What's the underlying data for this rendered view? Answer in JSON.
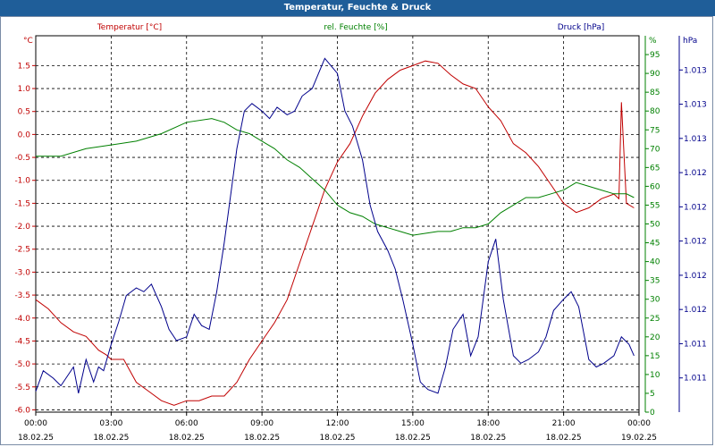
{
  "window": {
    "title": "Temperatur, Feuchte & Druck"
  },
  "colors": {
    "temperature": "#c00000",
    "humidity": "#008000",
    "pressure": "#00008b",
    "grid": "#000000",
    "titlebar": "#1f5e99"
  },
  "chart_data": {
    "type": "line",
    "title": "Temperatur, Feuchte & Druck",
    "grid": true,
    "x_axis": {
      "range": [
        "18.02.25 00:00",
        "19.02.25 00:00"
      ],
      "ticks": [
        {
          "time": "00:00",
          "date": "18.02.25"
        },
        {
          "time": "03:00",
          "date": "18.02.25"
        },
        {
          "time": "06:00",
          "date": "18.02.25"
        },
        {
          "time": "09:00",
          "date": "18.02.25"
        },
        {
          "time": "12:00",
          "date": "18.02.25"
        },
        {
          "time": "15:00",
          "date": "18.02.25"
        },
        {
          "time": "18:00",
          "date": "18.02.25"
        },
        {
          "time": "21:00",
          "date": "18.02.25"
        },
        {
          "time": "00:00",
          "date": "19.02.25"
        }
      ]
    },
    "axes": {
      "temperature": {
        "header": "Temperatur [°C]",
        "unit": "°C",
        "ylim": [
          -6.05,
          2.15
        ],
        "ticks": [
          "1.5",
          "1.0",
          "0.5",
          "0.0",
          "-0.5",
          "-1.0",
          "-1.5",
          "-2.0",
          "-2.5",
          "-3.0",
          "-3.5",
          "-4.0",
          "-4.5",
          "-5.0",
          "-5.5",
          "-6.0"
        ]
      },
      "humidity": {
        "header": "rel. Feuchte [%]",
        "unit": "%",
        "ylim": [
          0,
          100
        ],
        "ticks": [
          "95",
          "90",
          "85",
          "80",
          "75",
          "70",
          "65",
          "60",
          "55",
          "50",
          "45",
          "40",
          "35",
          "30",
          "25",
          "20",
          "15",
          "10",
          "5",
          "0"
        ]
      },
      "pressure": {
        "header": "Druck [hPa]",
        "unit": "hPa",
        "ticks": [
          "1.013",
          "1.013",
          "1.013",
          "1.012",
          "1.012",
          "1.012",
          "1.012",
          "1.012",
          "1.011",
          "1.011"
        ]
      }
    },
    "series": [
      {
        "name": "Temperatur [°C]",
        "axis": "temperature",
        "x_hours": [
          0,
          0.5,
          1,
          1.5,
          2,
          2.5,
          2.8,
          3,
          3.5,
          4,
          4.5,
          5,
          5.5,
          6,
          6.5,
          7,
          7.5,
          8,
          8.5,
          9,
          9.5,
          10,
          10.5,
          11,
          11.5,
          12,
          12.5,
          13,
          13.5,
          14,
          14.5,
          15,
          15.5,
          16,
          16.5,
          17,
          17.5,
          18,
          18.5,
          19,
          19.5,
          20,
          20.5,
          21,
          21.5,
          22,
          22.5,
          23,
          23.2,
          23.3,
          23.5,
          23.8
        ],
        "values": [
          -3.6,
          -3.8,
          -4.1,
          -4.3,
          -4.4,
          -4.7,
          -4.8,
          -4.9,
          -4.9,
          -5.4,
          -5.6,
          -5.8,
          -5.9,
          -5.8,
          -5.8,
          -5.7,
          -5.7,
          -5.4,
          -4.9,
          -4.5,
          -4.1,
          -3.6,
          -2.8,
          -2.0,
          -1.2,
          -0.6,
          -0.2,
          0.4,
          0.9,
          1.2,
          1.4,
          1.5,
          1.6,
          1.55,
          1.3,
          1.1,
          1.0,
          0.6,
          0.3,
          -0.2,
          -0.4,
          -0.7,
          -1.1,
          -1.5,
          -1.7,
          -1.6,
          -1.4,
          -1.3,
          -1.4,
          0.7,
          -1.5,
          -1.6
        ]
      },
      {
        "name": "rel. Feuchte [%]",
        "axis": "humidity",
        "x_hours": [
          0,
          1,
          2,
          3,
          4,
          5,
          6,
          7,
          7.5,
          8,
          8.5,
          9,
          9.5,
          10,
          10.5,
          11,
          11.5,
          12,
          12.5,
          13,
          13.5,
          14,
          14.5,
          15,
          15.5,
          16,
          16.5,
          17,
          17.5,
          18,
          18.5,
          19,
          19.5,
          20,
          20.5,
          21,
          21.5,
          22,
          22.5,
          23,
          23.5,
          23.8
        ],
        "values": [
          68,
          68,
          70,
          71,
          72,
          74,
          77,
          78,
          77,
          75,
          74,
          72,
          70,
          67,
          65,
          62,
          59,
          55,
          53,
          52,
          50,
          49,
          48,
          47,
          47.5,
          48,
          48,
          49,
          49,
          50,
          53,
          55,
          57,
          57,
          58,
          59,
          61,
          60,
          59,
          58,
          58,
          57
        ]
      },
      {
        "name": "Druck [hPa]",
        "axis": "pressure",
        "x_hours": [
          0,
          0.3,
          0.7,
          1,
          1.3,
          1.5,
          1.7,
          2,
          2.3,
          2.5,
          2.7,
          3,
          3.3,
          3.6,
          4,
          4.3,
          4.6,
          5,
          5.3,
          5.6,
          6,
          6.3,
          6.6,
          6.9,
          7.2,
          7.5,
          7.8,
          8,
          8.3,
          8.6,
          9,
          9.3,
          9.6,
          10,
          10.3,
          10.6,
          11,
          11.5,
          12,
          12.3,
          12.6,
          13,
          13.3,
          13.6,
          14,
          14.3,
          14.6,
          15,
          15.3,
          15.6,
          16,
          16.3,
          16.6,
          17,
          17.3,
          17.6,
          18,
          18.3,
          18.6,
          19,
          19.3,
          19.6,
          20,
          20.3,
          20.6,
          21,
          21.3,
          21.6,
          22,
          22.3,
          22.6,
          23,
          23.3,
          23.6,
          23.8
        ],
        "values": [
          5.5,
          11,
          9,
          7,
          10,
          12,
          5,
          14,
          8,
          12,
          11,
          18,
          24,
          31,
          33,
          32,
          34,
          28,
          22,
          19,
          20,
          26,
          23,
          22,
          32,
          45,
          60,
          70,
          80,
          82,
          80,
          78,
          81,
          79,
          80,
          84,
          86,
          94,
          90,
          80,
          76,
          67,
          55,
          48,
          43,
          38,
          30,
          18,
          8,
          6,
          5,
          12,
          22,
          26,
          15,
          20,
          40,
          46,
          30,
          15,
          13,
          14,
          16,
          20,
          27,
          30,
          32,
          28,
          14,
          12,
          13,
          15,
          20,
          18,
          15
        ]
      }
    ]
  }
}
